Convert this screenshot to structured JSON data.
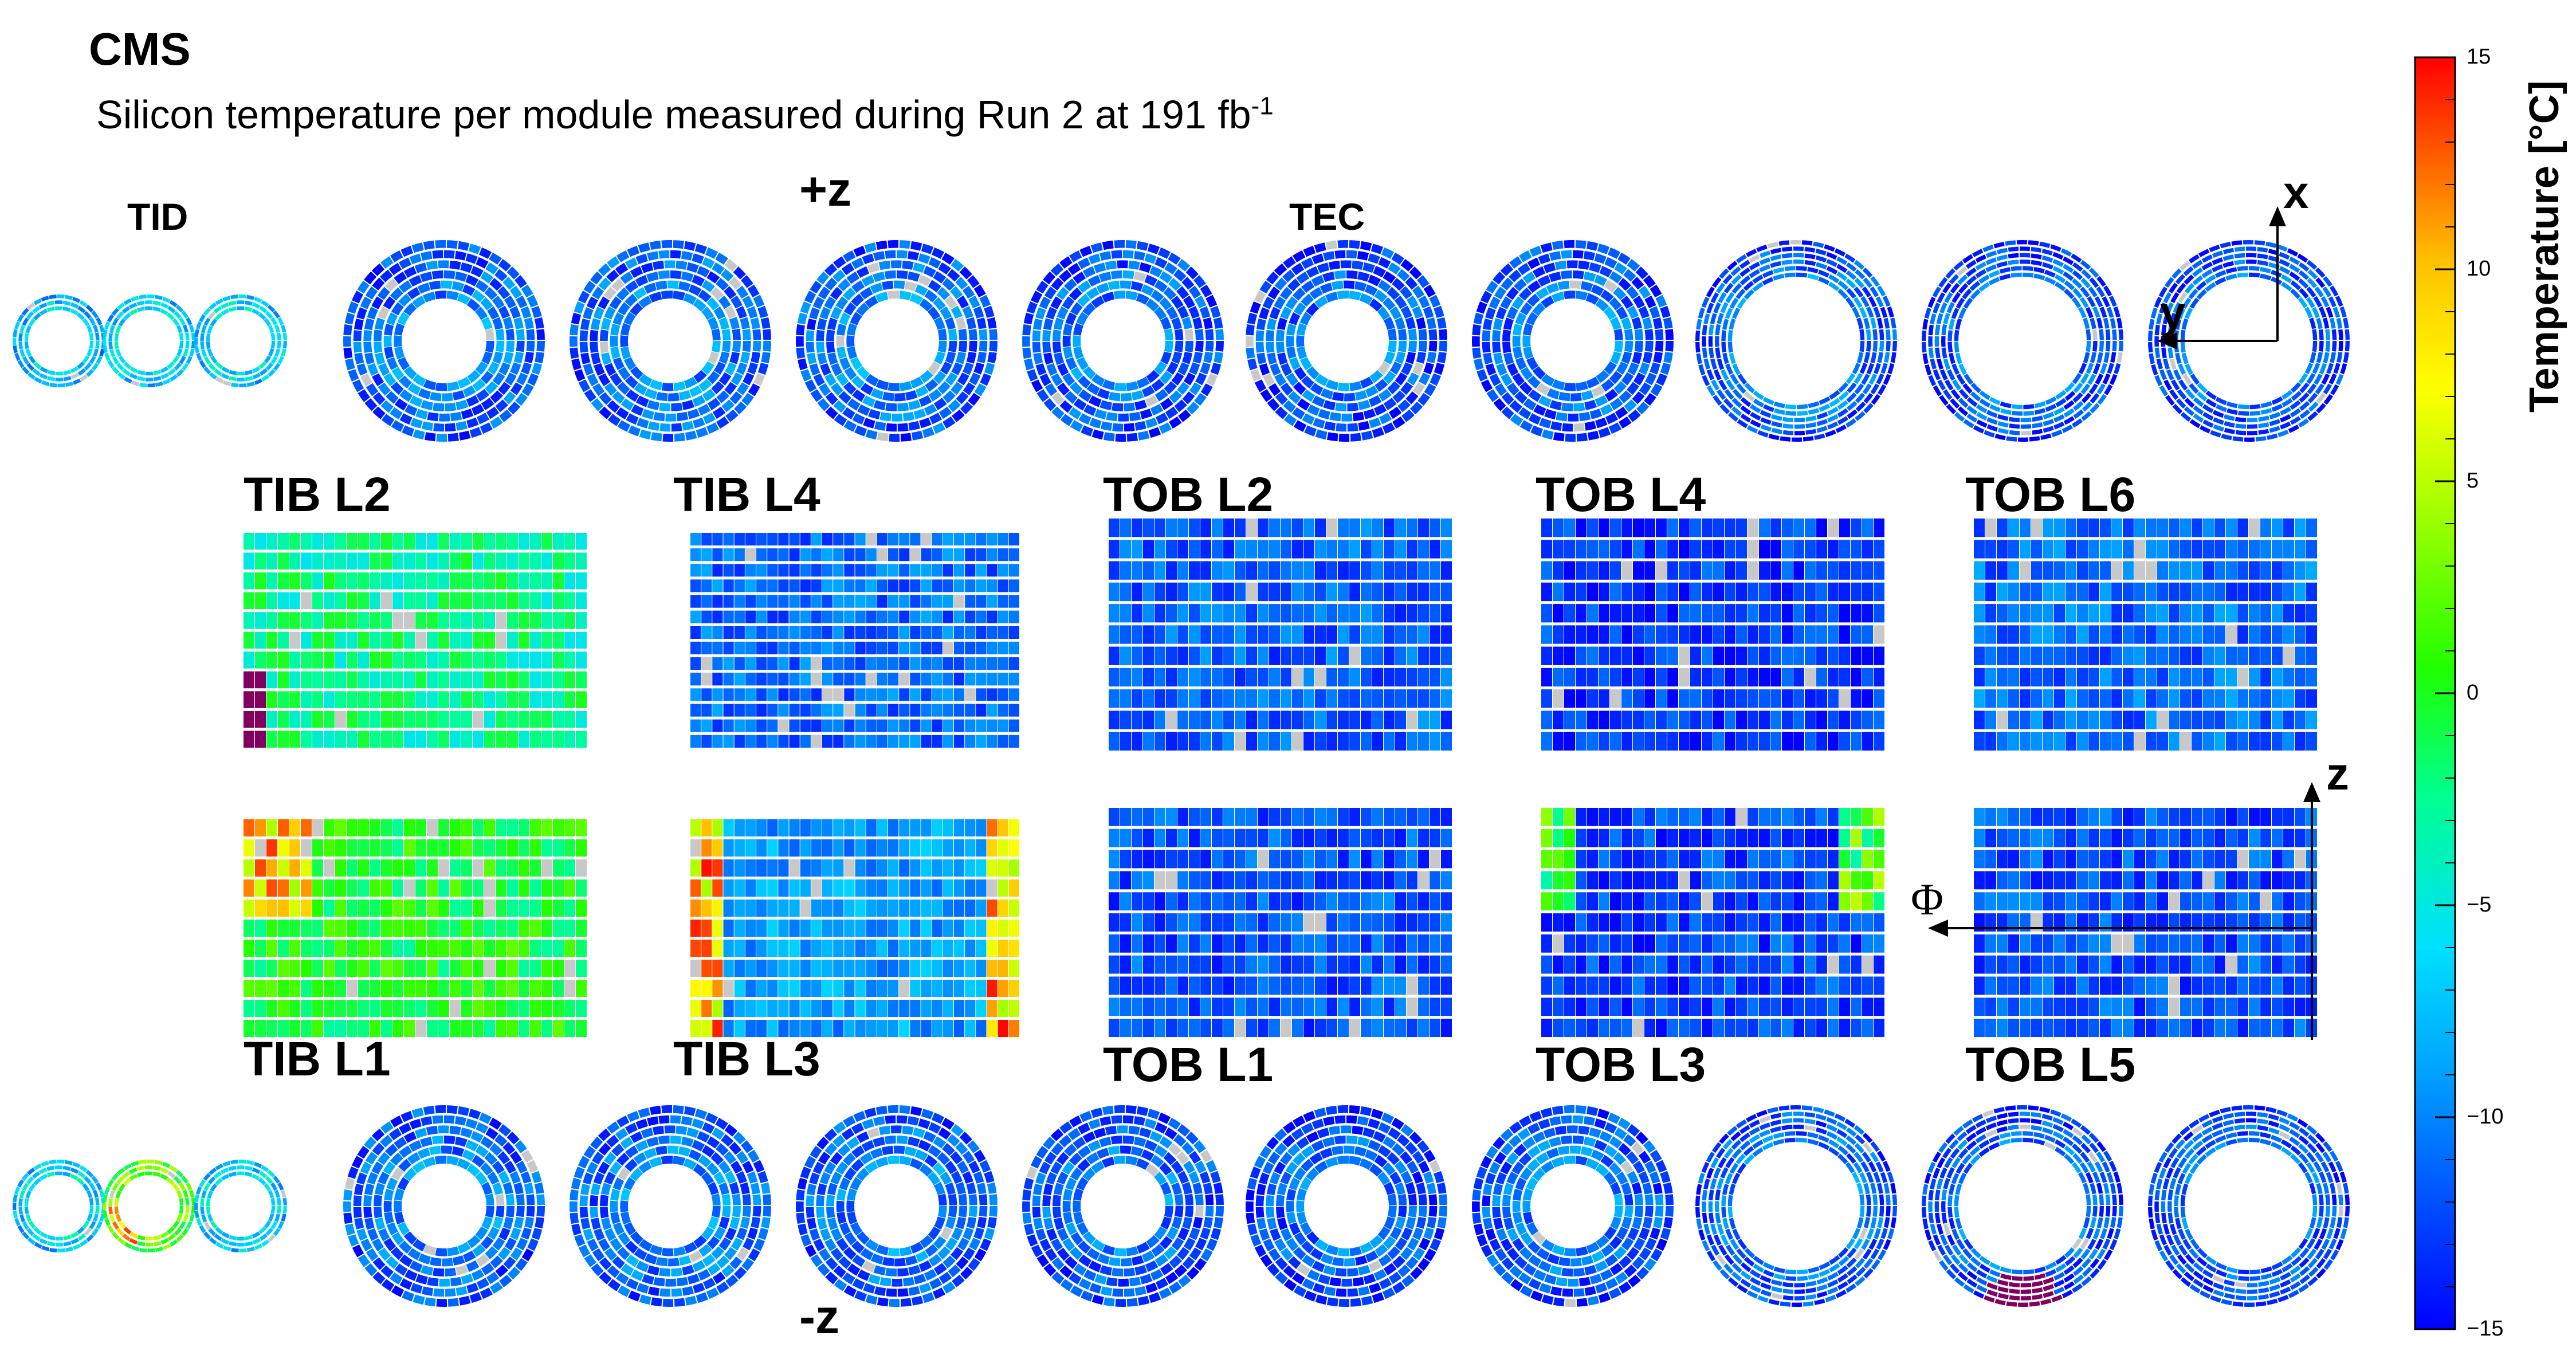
{
  "chart_data": {
    "type": "heatmap",
    "experiment": "CMS",
    "title_main": "Silicon temperature per module measured during Run 2 at 191 fb",
    "title_sup": "-1",
    "z_axis": {
      "label": "Temperature [°C]",
      "range": [
        -15,
        15
      ],
      "ticks": [
        {
          "value": 15,
          "label": "15"
        },
        {
          "value": 10,
          "label": "10"
        },
        {
          "value": 5,
          "label": "5"
        },
        {
          "value": 0,
          "label": "0"
        },
        {
          "value": -5,
          "label": "−5"
        },
        {
          "value": -10,
          "label": "−10"
        },
        {
          "value": -15,
          "label": "−15"
        }
      ],
      "colormap": [
        "#0000ff",
        "#0050ff",
        "#00a0ff",
        "#00e0ff",
        "#00ff90",
        "#20ff00",
        "#a0ff00",
        "#ffff00",
        "#ffc000",
        "#ff6000",
        "#ff0000"
      ]
    },
    "side_labels": {
      "plus_z": "+z",
      "minus_z": "-z",
      "tid": "TID",
      "tec": "TEC"
    },
    "endcap_axes": {
      "x": "x",
      "y": "y"
    },
    "barrel_axes": {
      "z": "z",
      "phi": "Φ"
    },
    "disk_rows": [
      {
        "side": "+z",
        "tid_mean_temp": [
          -7,
          -6,
          -6
        ],
        "tec_mean_temp": [
          -10,
          -10,
          -10,
          -10.5,
          -11,
          -10.5,
          -10.5,
          -11,
          -11
        ]
      },
      {
        "side": "-z",
        "tid_mean_temp": [
          -6,
          2,
          -6
        ],
        "tec_mean_temp": [
          -10,
          -10,
          -10,
          -10.5,
          -11,
          -10.5,
          -10.5,
          -11,
          -11
        ]
      }
    ],
    "barrel_layers": [
      {
        "name": "TIB L2",
        "mean_temp": -3,
        "rows": 11,
        "cols": 30
      },
      {
        "name": "TIB L4",
        "mean_temp": -11,
        "rows": 14,
        "cols": 30
      },
      {
        "name": "TOB L2",
        "mean_temp": -11.5,
        "rows": 11,
        "cols": 30
      },
      {
        "name": "TOB L4",
        "mean_temp": -13,
        "rows": 11,
        "cols": 30
      },
      {
        "name": "TOB L6",
        "mean_temp": -11,
        "rows": 11,
        "cols": 30
      },
      {
        "name": "TIB L1",
        "mean_temp": -1,
        "rows": 11,
        "cols": 30
      },
      {
        "name": "TIB L3",
        "mean_temp": -9,
        "rows": 11,
        "cols": 30
      },
      {
        "name": "TOB L1",
        "mean_temp": -12,
        "rows": 11,
        "cols": 30
      },
      {
        "name": "TOB L3",
        "mean_temp": -12.5,
        "rows": 11,
        "cols": 30
      },
      {
        "name": "TOB L5",
        "mean_temp": -12,
        "rows": 11,
        "cols": 30
      }
    ],
    "missing_color": "#c8c8c8",
    "off_color": "#800060"
  }
}
